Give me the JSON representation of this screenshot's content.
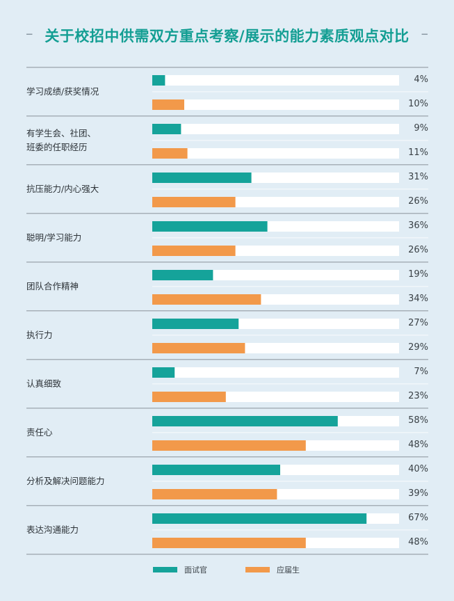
{
  "chart_data": {
    "type": "bar",
    "orientation": "horizontal",
    "title": "关于校招中供需双方重点考察/展示的能力素质观点对比",
    "categories": [
      "学习成绩/获奖情况",
      "有学生会、社团、班委的任职经历",
      "抗压能力/内心强大",
      "聪明/学习能力",
      "团队合作精神",
      "执行力",
      "认真细致",
      "责任心",
      "分析及解决问题能力",
      "表达沟通能力"
    ],
    "category_lines": [
      [
        "学习成绩/获奖情况"
      ],
      [
        "有学生会、社团、",
        "班委的任职经历"
      ],
      [
        "抗压能力/内心强大"
      ],
      [
        "聪明/学习能力"
      ],
      [
        "团队合作精神"
      ],
      [
        "执行力"
      ],
      [
        "认真细致"
      ],
      [
        "责任心"
      ],
      [
        "分析及解决问题能力"
      ],
      [
        "表达沟通能力"
      ]
    ],
    "series": [
      {
        "name": "面试官",
        "color": "#15a39a",
        "values": [
          4,
          9,
          31,
          36,
          19,
          27,
          7,
          58,
          40,
          67
        ]
      },
      {
        "name": "应届生",
        "color": "#f2994a",
        "values": [
          10,
          11,
          26,
          26,
          34,
          29,
          23,
          48,
          39,
          48
        ]
      }
    ],
    "value_labels": {
      "s0": [
        "4%",
        "9%",
        "31%",
        "36%",
        "19%",
        "27%",
        "7%",
        "58%",
        "40%",
        "67%"
      ],
      "s1": [
        "10%",
        "11%",
        "26%",
        "26%",
        "34%",
        "29%",
        "23%",
        "48%",
        "39%",
        "48%"
      ]
    },
    "unit": "%",
    "legend": "bottom",
    "grid": false
  }
}
